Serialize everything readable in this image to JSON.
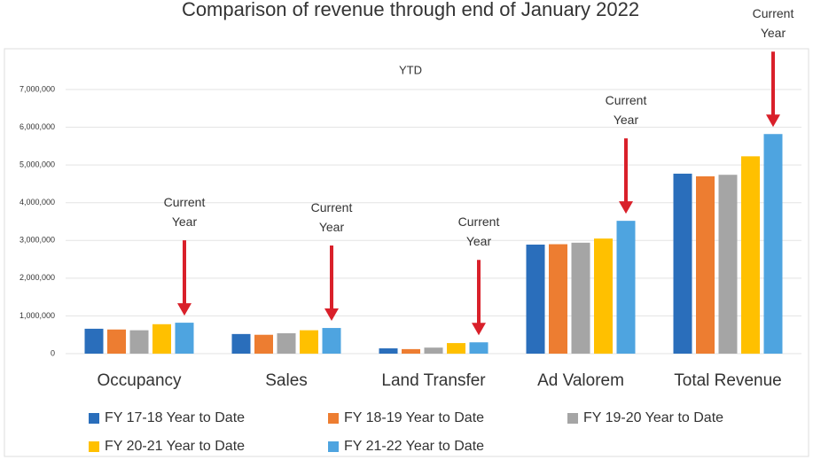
{
  "chart_data": {
    "type": "bar",
    "title": "Comparison of revenue through end of January 2022",
    "subtitle": "YTD",
    "categories": [
      "Occupancy",
      "Sales",
      "Land Transfer",
      "Ad Valorem",
      "Total Revenue"
    ],
    "series": [
      {
        "name": "FY 17-18 Year to Date",
        "color": "#2a6ebb",
        "values": [
          660000,
          520000,
          140000,
          2890000,
          4770000
        ]
      },
      {
        "name": "FY 18-19 Year to Date",
        "color": "#ed7d31",
        "values": [
          640000,
          500000,
          120000,
          2900000,
          4700000
        ]
      },
      {
        "name": "FY 19-20 Year to Date",
        "color": "#a5a5a5",
        "values": [
          620000,
          540000,
          160000,
          2940000,
          4740000
        ]
      },
      {
        "name": "FY 20-21 Year to Date",
        "color": "#ffc000",
        "values": [
          780000,
          620000,
          280000,
          3050000,
          5230000
        ]
      },
      {
        "name": "FY 21-22 Year to Date",
        "color": "#4ea4e0",
        "values": [
          820000,
          680000,
          300000,
          3520000,
          5820000
        ]
      }
    ],
    "annotations": [
      "Current Year",
      "Current Year",
      "Current Year",
      "Current Year",
      "Current Year"
    ],
    "ylim": [
      0,
      7000000
    ],
    "yticks": [
      0,
      {
        "value": 1000000,
        "label": "1,000,000"
      },
      {
        "value": 2000000,
        "label": "2,000,000"
      },
      {
        "value": 3000000,
        "label": "3,000,000"
      },
      {
        "value": 4000000,
        "label": "4,000,000"
      },
      {
        "value": 5000000,
        "label": "5,000,000"
      },
      {
        "value": 6000000,
        "label": "6,000,000"
      },
      {
        "value": 7000000,
        "label": "7,000,000"
      }
    ],
    "grid": true,
    "legend": "bottom",
    "arrow_color": "#d9202a"
  }
}
